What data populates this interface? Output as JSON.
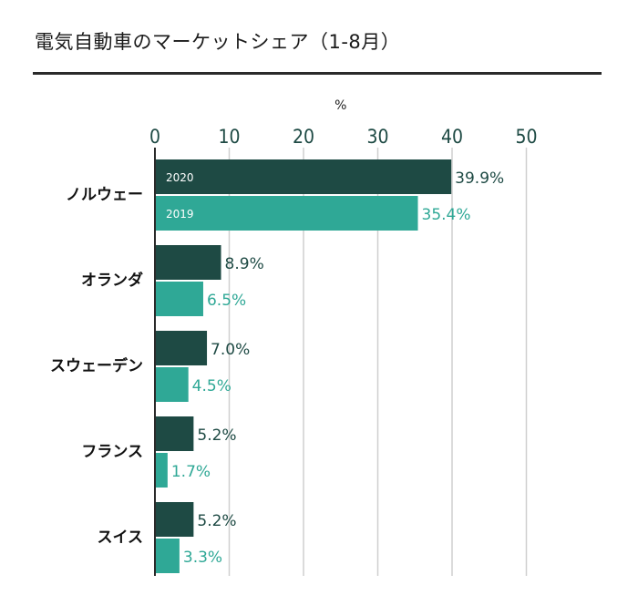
{
  "title": "電気自動車のマーケットシェア（1-8月）",
  "chart_data": {
    "type": "bar",
    "orientation": "horizontal",
    "unit_label": "%",
    "xlim": [
      0,
      50
    ],
    "ticks": [
      "0",
      "10",
      "20",
      "30",
      "40",
      "50"
    ],
    "grid": true,
    "categories": [
      "ノルウェー",
      "オランダ",
      "スウェーデン",
      "フランス",
      "スイス"
    ],
    "series": [
      {
        "name": "2020",
        "color": "#1e4a44",
        "values": [
          39.9,
          8.9,
          7.0,
          5.2,
          5.2
        ],
        "labels": [
          "39.9%",
          "8.9%",
          "7.0%",
          "5.2%",
          "5.2%"
        ]
      },
      {
        "name": "2019",
        "color": "#2fa896",
        "values": [
          35.4,
          6.5,
          4.5,
          1.7,
          3.3
        ],
        "labels": [
          "35.4%",
          "6.5%",
          "4.5%",
          "1.7%",
          "3.3%"
        ]
      }
    ]
  }
}
